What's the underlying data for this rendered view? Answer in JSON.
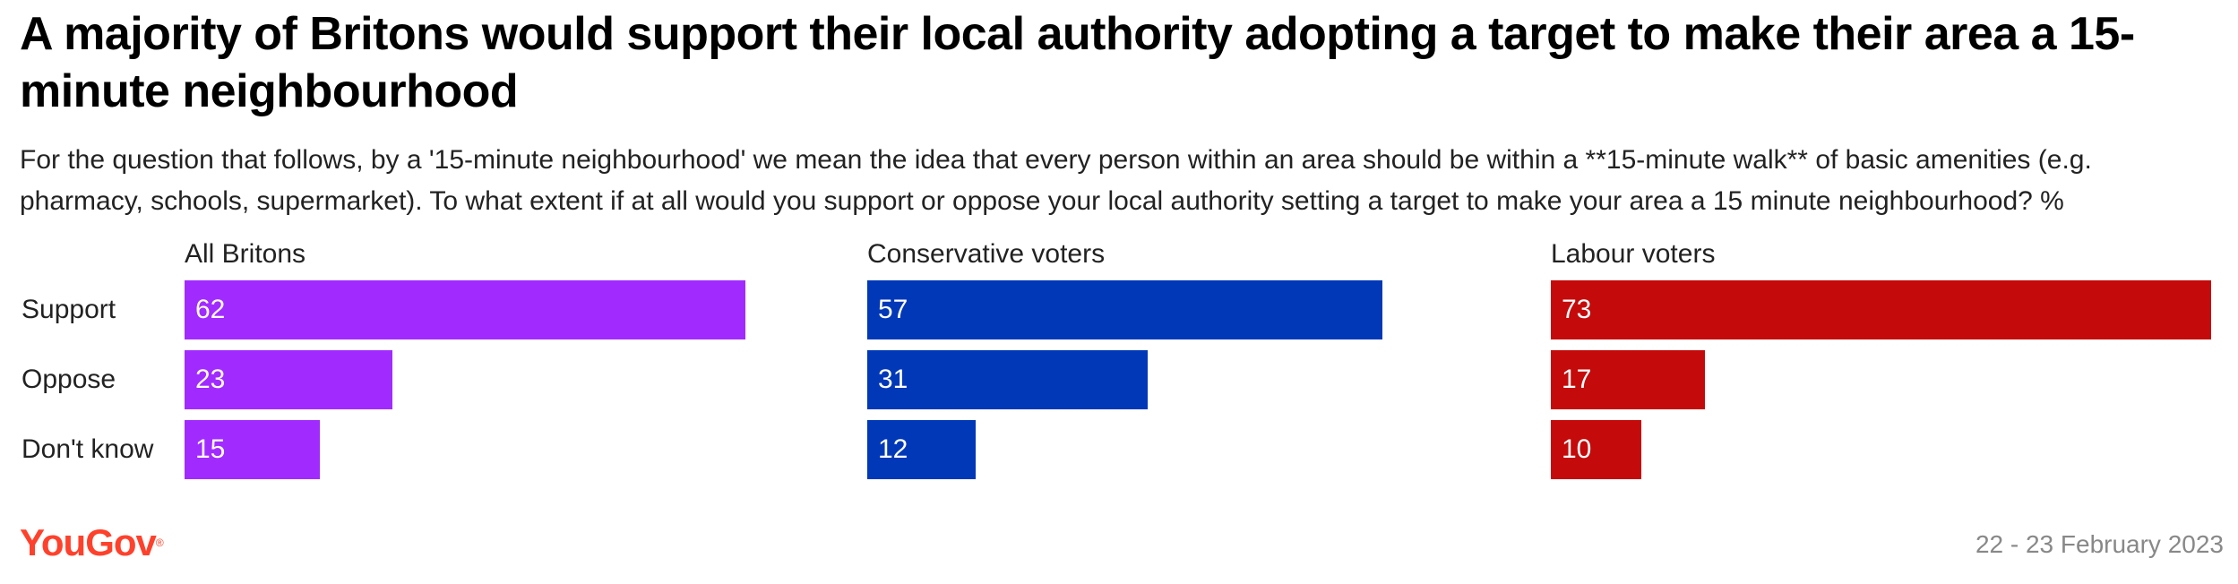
{
  "header": {
    "title": "A majority of Britons would support their local authority adopting a target to make their area a 15-minute neighbourhood",
    "subtitle": "For the question that follows, by a '15-minute neighbourhood' we mean the idea that every person within an area should be within a **15-minute walk** of basic amenities (e.g. pharmacy, schools, supermarket). To what extent if at all would you support or oppose your local authority setting a target to make your area a 15 minute neighbourhood? %"
  },
  "chart_data": {
    "type": "bar",
    "orientation": "horizontal",
    "categories": [
      "Support",
      "Oppose",
      "Don't know"
    ],
    "xlim": [
      0,
      73
    ],
    "series": [
      {
        "name": "All Britons",
        "color": "#a12bff",
        "values": [
          62,
          23,
          15
        ]
      },
      {
        "name": "Conservative voters",
        "color": "#0038b8",
        "values": [
          57,
          31,
          12
        ]
      },
      {
        "name": "Labour voters",
        "color": "#c40a0a",
        "values": [
          73,
          17,
          10
        ]
      }
    ]
  },
  "footer": {
    "logo": "YouGov",
    "logo_mark": "®",
    "logo_color": "#ff412c",
    "date": "22 - 23 February 2023"
  }
}
